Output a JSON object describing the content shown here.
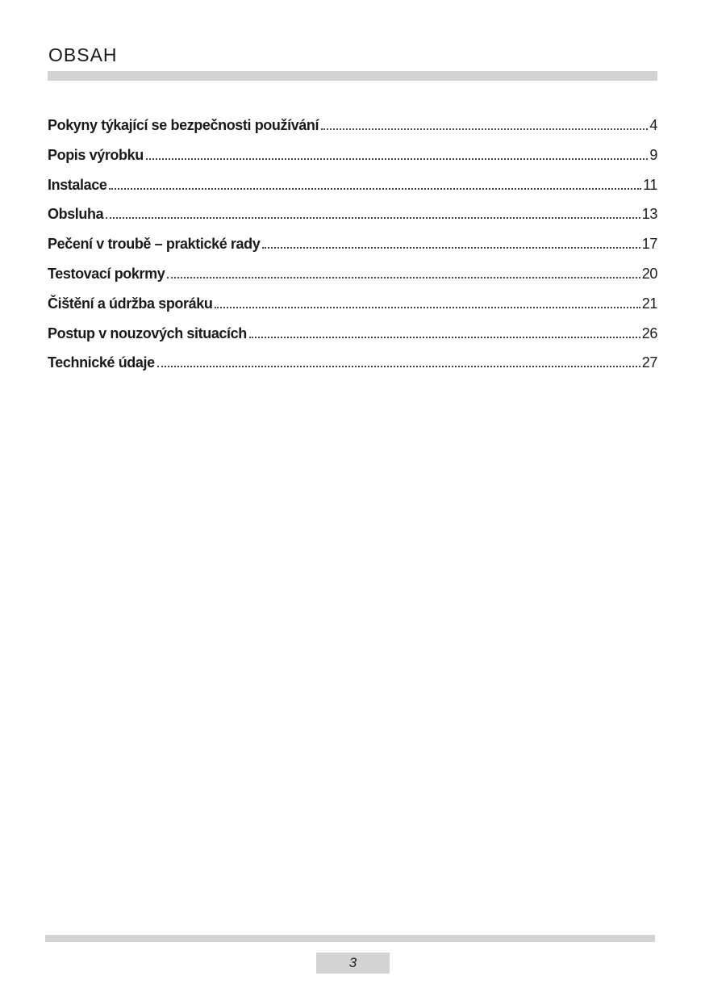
{
  "title": "OBSAH",
  "toc": [
    {
      "title": "Pokyny týkající se bezpečnosti používání",
      "page": "4"
    },
    {
      "title": "Popis výrobku",
      "page": "9"
    },
    {
      "title": "Instalace",
      "page": "11"
    },
    {
      "title": "Obsluha",
      "page": "13"
    },
    {
      "title": "Pečení v troubě – praktické rady",
      "page": "17"
    },
    {
      "title": "Testovací pokrmy",
      "page": "20"
    },
    {
      "title": "Čištění a údržba sporáku",
      "page": "21"
    },
    {
      "title": "Postup v nouzových situacích",
      "page": "26"
    },
    {
      "title": "Technické údaje",
      "page": "27"
    }
  ],
  "footer": {
    "page_number": "3"
  }
}
